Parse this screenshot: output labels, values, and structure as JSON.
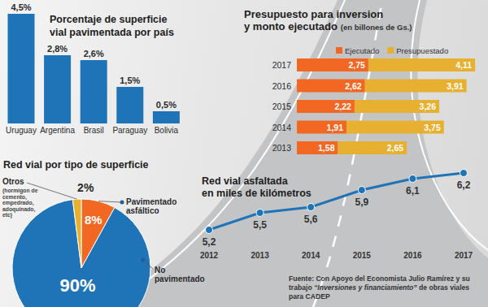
{
  "chart_data": [
    {
      "type": "bar",
      "title": [
        "Porcentaje de superficie",
        "vial pavimentada por país"
      ],
      "categories": [
        "Uruguay",
        "Argentina",
        "Brasil",
        "Paraguay",
        "Bolivia"
      ],
      "values": [
        4.5,
        2.8,
        2.6,
        1.5,
        0.5
      ],
      "value_labels": [
        "4,5%",
        "2,8%",
        "2,6%",
        "1,5%",
        "0,5%"
      ],
      "color": "#1f73b7",
      "ylim": [
        0,
        4.5
      ],
      "data_labels": true,
      "tick_labels": "x"
    },
    {
      "type": "bar",
      "orientation": "horizontal",
      "stacked": true,
      "title": [
        "Presupuesto para inversion",
        "y monto ejecutado"
      ],
      "subtitle": "(en billones de Gs.)",
      "categories": [
        "2017",
        "2016",
        "2015",
        "2014",
        "2013"
      ],
      "series": [
        {
          "name": "Ejecutado",
          "color": "#f26722",
          "values": [
            2.75,
            2.62,
            2.22,
            1.91,
            1.58
          ],
          "value_labels": [
            "2,75",
            "2,62",
            "2,22",
            "1,91",
            "1,58"
          ]
        },
        {
          "name": "Presupuestado",
          "color": "#e8b030",
          "values": [
            4.11,
            3.91,
            3.26,
            3.75,
            2.65
          ],
          "value_labels": [
            "4,11",
            "3,91",
            "3,26",
            "3,75",
            "2,65"
          ]
        }
      ],
      "xlim": [
        0,
        7.2
      ],
      "legend": "top",
      "data_labels": true,
      "tick_labels": "y"
    },
    {
      "type": "pie",
      "title": "Red vial por tipo de superficie",
      "categories": [
        "Pavimentado asfáltico",
        "No pavimentado",
        "Otros"
      ],
      "annotations": [
        "(hormigon de cemento, empedrado, adoquinado, etc)"
      ],
      "values": [
        8,
        90,
        2
      ],
      "value_labels": [
        "8%",
        "90%",
        "2%"
      ],
      "colors": [
        "#f26722",
        "#1f73b7",
        "#e8b030"
      ],
      "data_labels": true
    },
    {
      "type": "line",
      "title": [
        "Red vial asfaltada",
        "en miles de kilómetros"
      ],
      "x": [
        2012,
        2013,
        2014,
        2015,
        2016,
        2017
      ],
      "values": [
        5.2,
        5.5,
        5.6,
        5.9,
        6.1,
        6.2
      ],
      "value_labels": [
        "5,2",
        "5,5",
        "5,6",
        "5,9",
        "6,1",
        "6,2"
      ],
      "color": "#1f73b7",
      "marker": "circle",
      "xlim": [
        2012,
        2017
      ],
      "xticks": [
        2012,
        2013,
        2014,
        2015,
        2016,
        2017
      ],
      "ylim": [
        5,
        6.4
      ],
      "data_labels": true,
      "tick_labels": "x"
    }
  ],
  "source": [
    "Fuente: Con Apoyo del Economista Julio Ramírez y su trabajo",
    "“Inversiones y financiamiento”",
    "de obras viales para CADEP"
  ]
}
